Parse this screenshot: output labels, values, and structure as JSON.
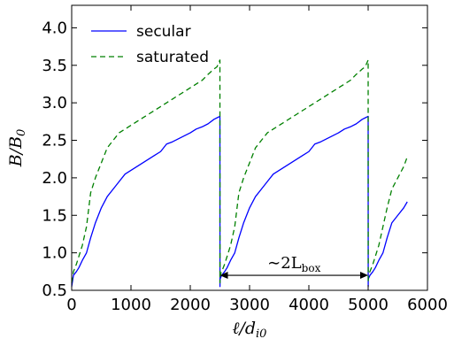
{
  "chart_data": {
    "type": "line",
    "xlabel": {
      "main": "ℓ/d",
      "sub": "i0"
    },
    "ylabel": {
      "main": "B/B",
      "sub": "0"
    },
    "xlim": [
      0,
      6000
    ],
    "ylim": [
      0.5,
      4.3
    ],
    "xticks": [
      "0",
      "1000",
      "2000",
      "3000",
      "4000",
      "5000",
      "6000"
    ],
    "xtick_values": [
      0,
      1000,
      2000,
      3000,
      4000,
      5000,
      6000
    ],
    "yticks": [
      "0.5",
      "1.0",
      "1.5",
      "2.0",
      "2.5",
      "3.0",
      "3.5",
      "4.0"
    ],
    "ytick_values": [
      0.5,
      1.0,
      1.5,
      2.0,
      2.5,
      3.0,
      3.5,
      4.0
    ],
    "legend_position": "top-left",
    "colors": {
      "secular": "#0000ff",
      "saturated": "#008000"
    },
    "series": [
      {
        "name": "secular",
        "style": "solid",
        "color": "#0000ff",
        "x": [
          0,
          30,
          80,
          120,
          180,
          250,
          320,
          400,
          500,
          600,
          700,
          800,
          900,
          1000,
          1100,
          1200,
          1300,
          1400,
          1500,
          1600,
          1700,
          1800,
          1900,
          2000,
          2100,
          2200,
          2300,
          2400,
          2450,
          2500,
          2501,
          2502,
          2530,
          2580,
          2620,
          2680,
          2750,
          2820,
          2900,
          3000,
          3100,
          3200,
          3300,
          3400,
          3500,
          3600,
          3700,
          3800,
          3900,
          4000,
          4100,
          4200,
          4300,
          4400,
          4500,
          4600,
          4700,
          4800,
          4900,
          4950,
          5000,
          5001,
          5002,
          5030,
          5080,
          5120,
          5180,
          5250,
          5320,
          5400,
          5500,
          5600,
          5660
        ],
        "y": [
          0.55,
          0.7,
          0.75,
          0.8,
          0.9,
          1.0,
          1.2,
          1.4,
          1.6,
          1.75,
          1.85,
          1.95,
          2.05,
          2.1,
          2.15,
          2.2,
          2.25,
          2.3,
          2.35,
          2.45,
          2.48,
          2.52,
          2.56,
          2.6,
          2.65,
          2.68,
          2.72,
          2.78,
          2.8,
          2.82,
          0.55,
          0.65,
          0.7,
          0.75,
          0.8,
          0.9,
          1.0,
          1.2,
          1.4,
          1.6,
          1.75,
          1.85,
          1.95,
          2.05,
          2.1,
          2.15,
          2.2,
          2.25,
          2.3,
          2.35,
          2.45,
          2.48,
          2.52,
          2.56,
          2.6,
          2.65,
          2.68,
          2.72,
          2.78,
          2.8,
          2.82,
          0.55,
          0.65,
          0.7,
          0.75,
          0.8,
          0.9,
          1.0,
          1.2,
          1.4,
          1.5,
          1.6,
          1.68
        ]
      },
      {
        "name": "saturated",
        "style": "dashed",
        "color": "#008000",
        "x": [
          0,
          30,
          80,
          120,
          180,
          250,
          320,
          400,
          500,
          600,
          700,
          800,
          900,
          1000,
          1100,
          1200,
          1300,
          1400,
          1500,
          1600,
          1700,
          1800,
          1900,
          2000,
          2100,
          2200,
          2300,
          2400,
          2450,
          2500,
          2501,
          2502,
          2530,
          2580,
          2620,
          2680,
          2750,
          2820,
          2900,
          3000,
          3100,
          3200,
          3300,
          3400,
          3500,
          3600,
          3700,
          3800,
          3900,
          4000,
          4100,
          4200,
          4300,
          4400,
          4500,
          4600,
          4700,
          4800,
          4900,
          4950,
          5000,
          5001,
          5002,
          5030,
          5080,
          5120,
          5180,
          5250,
          5320,
          5400,
          5500,
          5600,
          5660
        ],
        "y": [
          0.6,
          0.75,
          0.85,
          0.95,
          1.1,
          1.35,
          1.8,
          2.0,
          2.2,
          2.4,
          2.5,
          2.6,
          2.65,
          2.7,
          2.75,
          2.8,
          2.85,
          2.9,
          2.95,
          3.0,
          3.05,
          3.1,
          3.15,
          3.2,
          3.25,
          3.3,
          3.38,
          3.45,
          3.48,
          3.57,
          0.6,
          0.7,
          0.75,
          0.85,
          0.95,
          1.1,
          1.35,
          1.8,
          2.0,
          2.2,
          2.4,
          2.5,
          2.6,
          2.65,
          2.7,
          2.75,
          2.8,
          2.85,
          2.9,
          2.95,
          3.0,
          3.05,
          3.1,
          3.15,
          3.2,
          3.25,
          3.3,
          3.38,
          3.45,
          3.48,
          3.57,
          0.6,
          0.7,
          0.75,
          0.85,
          0.95,
          1.1,
          1.35,
          1.6,
          1.85,
          2.0,
          2.15,
          2.28
        ]
      }
    ],
    "annotation": {
      "text_main": "∼2L",
      "text_sub": "box",
      "x_from": 2500,
      "x_to": 5000,
      "y": 0.7
    }
  }
}
